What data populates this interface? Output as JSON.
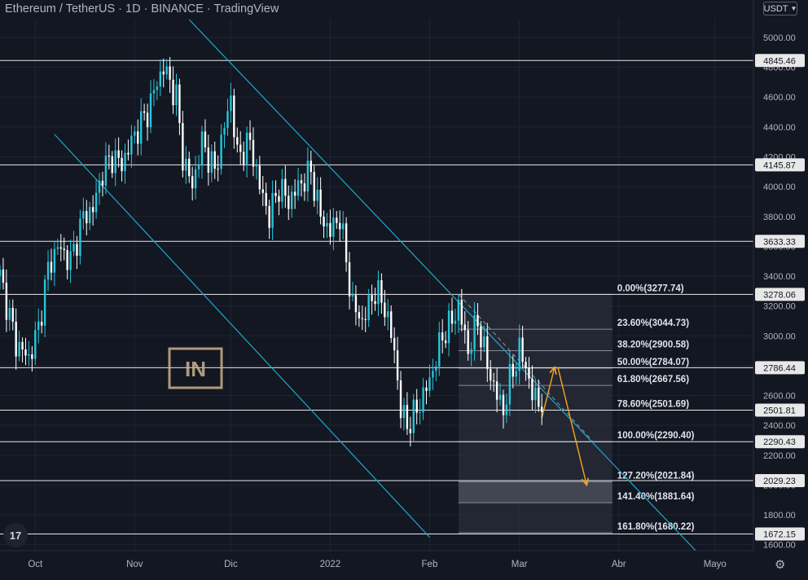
{
  "header": {
    "title": "Ethereum / TetherUS · 1D · BINANCE · TradingView",
    "currency": "USDT"
  },
  "logo_text": "IN",
  "colors": {
    "background": "#131722",
    "grid": "#1f2433",
    "bull": "#26c6da",
    "bear": "#ffffff",
    "trendline": "#1ca9c9",
    "level_line": "#e8e8e8",
    "projection_arrow": "#f5a623",
    "fib_zone": "#2a2e39"
  },
  "chart_data": {
    "type": "candlestick",
    "symbol": "Ethereum / TetherUS",
    "interval": "1D",
    "exchange": "BINANCE",
    "y_ticks": [
      1600,
      1800,
      2000,
      2200,
      2400,
      2600,
      2800,
      3000,
      3200,
      3400,
      3600,
      3800,
      4000,
      4200,
      4400,
      4600,
      4800,
      5000
    ],
    "y_tick_labels": [
      "1600.00",
      "1800.00",
      "2000.00",
      "2200.00",
      "2400.00",
      "2600.00",
      "2800.00",
      "3000.00",
      "3200.00",
      "3400.00",
      "3600.00",
      "3800.00",
      "4000.00",
      "4200.00",
      "4400.00",
      "4600.00",
      "4800.00",
      "5000.00"
    ],
    "ylim": [
      1560,
      5120
    ],
    "x_ticks": [
      {
        "date": "2021-10-01",
        "label": "Oct"
      },
      {
        "date": "2021-11-01",
        "label": "Nov"
      },
      {
        "date": "2021-12-01",
        "label": "Dic"
      },
      {
        "date": "2022-01-01",
        "label": "2022"
      },
      {
        "date": "2022-02-01",
        "label": "Feb"
      },
      {
        "date": "2022-03-01",
        "label": "Mar"
      },
      {
        "date": "2022-04-01",
        "label": "Abr"
      },
      {
        "date": "2022-05-01",
        "label": "Mayo"
      }
    ],
    "xlim": [
      "2021-09-20",
      "2022-05-13"
    ],
    "horizontal_levels": [
      {
        "value": 4845.46,
        "label": "4845.46"
      },
      {
        "value": 4145.87,
        "label": "4145.87"
      },
      {
        "value": 3633.33,
        "label": "3633.33"
      },
      {
        "value": 3278.06,
        "label": "3278.06"
      },
      {
        "value": 2786.44,
        "label": "2786.44"
      },
      {
        "value": 2501.81,
        "label": "2501.81"
      },
      {
        "value": 2290.43,
        "label": "2290.43"
      },
      {
        "value": 2029.23,
        "label": "2029.23"
      },
      {
        "value": 1672.15,
        "label": "1672.15"
      }
    ],
    "fib_levels": [
      {
        "value": 3277.74,
        "label": "0.00%(3277.74)"
      },
      {
        "value": 3044.73,
        "label": "23.60%(3044.73)"
      },
      {
        "value": 2900.58,
        "label": "38.20%(2900.58)"
      },
      {
        "value": 2784.07,
        "label": "50.00%(2784.07)"
      },
      {
        "value": 2667.56,
        "label": "61.80%(2667.56)"
      },
      {
        "value": 2501.69,
        "label": "78.60%(2501.69)"
      },
      {
        "value": 2290.4,
        "label": "100.00%(2290.40)"
      },
      {
        "value": 2021.84,
        "label": "127.20%(2021.84)"
      },
      {
        "value": 1881.64,
        "label": "141.40%(1881.64)"
      },
      {
        "value": 1680.22,
        "label": "161.80%(1680.22)"
      }
    ],
    "channel_lines": [
      {
        "start": [
          "2021-11-18",
          5120
        ],
        "end": [
          "2022-04-25",
          1560
        ]
      },
      {
        "start": [
          "2021-10-07",
          4350
        ],
        "end": [
          "2022-02-01",
          1650
        ]
      }
    ],
    "projection_dashed": {
      "start": [
        "2022-02-10",
        3280
      ],
      "end": [
        "2022-03-24",
        2290
      ]
    },
    "projection_arrows": [
      {
        "start": [
          "2022-03-08",
          2450
        ],
        "end": [
          "2022-03-12",
          2790
        ]
      },
      {
        "start": [
          "2022-03-13",
          2790
        ],
        "end": [
          "2022-03-22",
          2000
        ]
      }
    ],
    "price_path": [
      [
        "2021-09-20",
        3400
      ],
      [
        "2021-09-25",
        2950
      ],
      [
        "2021-09-29",
        2850
      ],
      [
        "2021-10-02",
        3050
      ],
      [
        "2021-10-05",
        3450
      ],
      [
        "2021-10-08",
        3600
      ],
      [
        "2021-10-12",
        3500
      ],
      [
        "2021-10-16",
        3800
      ],
      [
        "2021-10-19",
        3850
      ],
      [
        "2021-10-22",
        4100
      ],
      [
        "2021-10-25",
        4200
      ],
      [
        "2021-10-28",
        4150
      ],
      [
        "2021-11-01",
        4350
      ],
      [
        "2021-11-05",
        4500
      ],
      [
        "2021-11-08",
        4700
      ],
      [
        "2021-11-10",
        4800
      ],
      [
        "2021-11-14",
        4600
      ],
      [
        "2021-11-16",
        4200
      ],
      [
        "2021-11-19",
        4000
      ],
      [
        "2021-11-22",
        4300
      ],
      [
        "2021-11-26",
        4100
      ],
      [
        "2021-11-29",
        4400
      ],
      [
        "2021-12-01",
        4600
      ],
      [
        "2021-12-03",
        4200
      ],
      [
        "2021-12-07",
        4300
      ],
      [
        "2021-12-10",
        4000
      ],
      [
        "2021-12-13",
        3800
      ],
      [
        "2021-12-16",
        4000
      ],
      [
        "2021-12-19",
        3900
      ],
      [
        "2021-12-22",
        4000
      ],
      [
        "2021-12-26",
        4100
      ],
      [
        "2021-12-29",
        3800
      ],
      [
        "2022-01-01",
        3700
      ],
      [
        "2022-01-04",
        3800
      ],
      [
        "2022-01-06",
        3500
      ],
      [
        "2022-01-08",
        3200
      ],
      [
        "2022-01-11",
        3100
      ],
      [
        "2022-01-15",
        3300
      ],
      [
        "2022-01-18",
        3200
      ],
      [
        "2022-01-21",
        2900
      ],
      [
        "2022-01-23",
        2500
      ],
      [
        "2022-01-25",
        2400
      ],
      [
        "2022-01-28",
        2500
      ],
      [
        "2022-02-01",
        2700
      ],
      [
        "2022-02-05",
        3000
      ],
      [
        "2022-02-08",
        3100
      ],
      [
        "2022-02-10",
        3200
      ],
      [
        "2022-02-13",
        2900
      ],
      [
        "2022-02-16",
        3100
      ],
      [
        "2022-02-19",
        2800
      ],
      [
        "2022-02-22",
        2600
      ],
      [
        "2022-02-24",
        2500
      ],
      [
        "2022-02-26",
        2700
      ],
      [
        "2022-03-01",
        2900
      ],
      [
        "2022-03-03",
        2800
      ],
      [
        "2022-03-05",
        2600
      ],
      [
        "2022-03-08",
        2550
      ]
    ]
  }
}
